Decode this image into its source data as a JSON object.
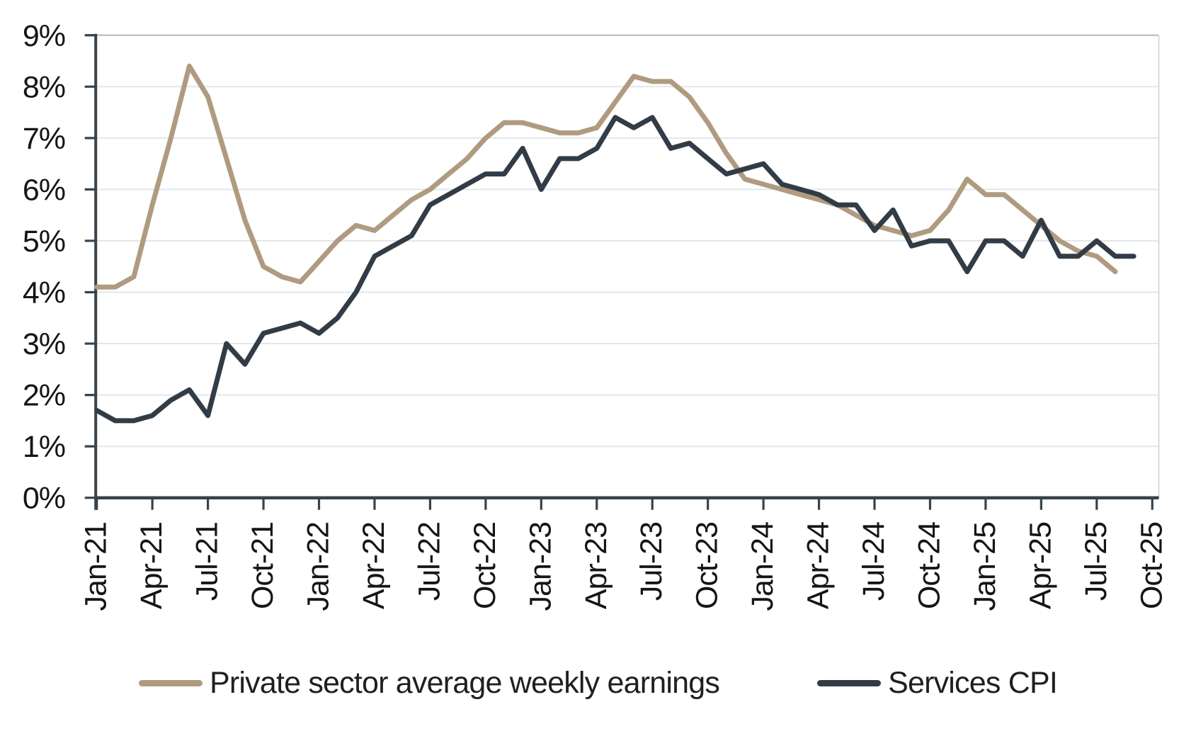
{
  "chart_data": {
    "type": "line",
    "title": "",
    "xlabel": "",
    "ylabel": "",
    "ylim": [
      0,
      9
    ],
    "grid": "horizontal",
    "legend_position": "bottom",
    "y_tick_labels": [
      "0%",
      "1%",
      "2%",
      "3%",
      "4%",
      "5%",
      "6%",
      "7%",
      "8%",
      "9%"
    ],
    "x_tick_labels": [
      "Jan-21",
      "Apr-21",
      "Jul-21",
      "Oct-21",
      "Jan-22",
      "Apr-22",
      "Jul-22",
      "Oct-22",
      "Jan-23",
      "Apr-23",
      "Jul-23",
      "Oct-23",
      "Jan-24",
      "Apr-24",
      "Jul-24",
      "Oct-24",
      "Jan-25",
      "Apr-25",
      "Jul-25",
      "Oct-25"
    ],
    "months": [
      "Jan-21",
      "Feb-21",
      "Mar-21",
      "Apr-21",
      "May-21",
      "Jun-21",
      "Jul-21",
      "Aug-21",
      "Sep-21",
      "Oct-21",
      "Nov-21",
      "Dec-21",
      "Jan-22",
      "Feb-22",
      "Mar-22",
      "Apr-22",
      "May-22",
      "Jun-22",
      "Jul-22",
      "Aug-22",
      "Sep-22",
      "Oct-22",
      "Nov-22",
      "Dec-22",
      "Jan-23",
      "Feb-23",
      "Mar-23",
      "Apr-23",
      "May-23",
      "Jun-23",
      "Jul-23",
      "Aug-23",
      "Sep-23",
      "Oct-23",
      "Nov-23",
      "Dec-23",
      "Jan-24",
      "Feb-24",
      "Mar-24",
      "Apr-24",
      "May-24",
      "Jun-24",
      "Jul-24",
      "Aug-24",
      "Sep-24",
      "Oct-24",
      "Nov-24",
      "Dec-24",
      "Jan-25",
      "Feb-25",
      "Mar-25",
      "Apr-25",
      "May-25",
      "Jun-25",
      "Jul-25",
      "Aug-25",
      "Sep-25"
    ],
    "series": [
      {
        "name": "Private sector average weekly earnings",
        "color": "#b09b80",
        "values": [
          4.1,
          4.1,
          4.3,
          5.7,
          7.0,
          8.4,
          7.8,
          6.6,
          5.4,
          4.5,
          4.3,
          4.2,
          4.6,
          5.0,
          5.3,
          5.2,
          5.5,
          5.8,
          6.0,
          6.3,
          6.6,
          7.0,
          7.3,
          7.3,
          7.2,
          7.1,
          7.1,
          7.2,
          7.7,
          8.2,
          8.1,
          8.1,
          7.8,
          7.3,
          6.7,
          6.2,
          6.1,
          6.0,
          5.9,
          5.8,
          5.7,
          5.5,
          5.3,
          5.2,
          5.1,
          5.2,
          5.6,
          6.2,
          5.9,
          5.9,
          5.6,
          5.3,
          5.0,
          4.8,
          4.7,
          4.4
        ]
      },
      {
        "name": "Services CPI",
        "color": "#323c46",
        "values": [
          1.7,
          1.5,
          1.5,
          1.6,
          1.9,
          2.1,
          1.6,
          3.0,
          2.6,
          3.2,
          3.3,
          3.4,
          3.2,
          3.5,
          4.0,
          4.7,
          4.9,
          5.1,
          5.7,
          5.9,
          6.1,
          6.3,
          6.3,
          6.8,
          6.0,
          6.6,
          6.6,
          6.8,
          7.4,
          7.2,
          7.4,
          6.8,
          6.9,
          6.6,
          6.3,
          6.4,
          6.5,
          6.1,
          6.0,
          5.9,
          5.7,
          5.7,
          5.2,
          5.6,
          4.9,
          5.0,
          5.0,
          4.4,
          5.0,
          5.0,
          4.7,
          5.4,
          4.7,
          4.7,
          5.0,
          4.7,
          4.7
        ]
      }
    ]
  },
  "colors": {
    "background": "#ffffff",
    "gridline": "#e3e7e9",
    "top_gridline": "#c2c6c8",
    "right_border": "#d8dcde",
    "axis": "#37424b",
    "tick_label": "#151515"
  }
}
